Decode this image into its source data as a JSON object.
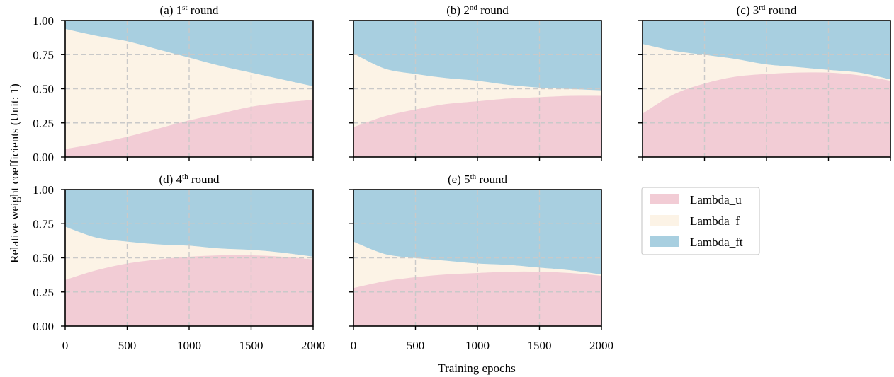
{
  "figure": {
    "ylabel": "Relative weight coefficients (Unit: 1)",
    "xlabel": "Training epochs"
  },
  "legend": {
    "items": [
      {
        "label": "Lambda_u",
        "color": "#f2ccd5"
      },
      {
        "label": "Lambda_f",
        "color": "#fcf3e6"
      },
      {
        "label": "Lambda_ft",
        "color": "#a8cfe0"
      }
    ],
    "placement": "right of bottom row"
  },
  "chart_data": [
    {
      "type": "area",
      "stacked": true,
      "title": {
        "prefix": "(a) 1",
        "sup": "st",
        "suffix": " round"
      },
      "x": [
        0,
        250,
        500,
        750,
        1000,
        1250,
        1500,
        1750,
        2000
      ],
      "xlim": [
        0,
        2000
      ],
      "ylim": [
        0,
        1
      ],
      "xticks": [
        0,
        500,
        1000,
        1500,
        2000
      ],
      "yticks": [
        0.0,
        0.25,
        0.5,
        0.75,
        1.0
      ],
      "grid": true,
      "series": [
        {
          "name": "Lambda_u",
          "values": [
            0.06,
            0.1,
            0.15,
            0.21,
            0.27,
            0.32,
            0.37,
            0.4,
            0.42
          ]
        },
        {
          "name": "Lambda_f",
          "values": [
            0.88,
            0.79,
            0.7,
            0.58,
            0.46,
            0.35,
            0.25,
            0.17,
            0.1
          ]
        },
        {
          "name": "Lambda_ft",
          "values": [
            0.06,
            0.11,
            0.15,
            0.21,
            0.27,
            0.33,
            0.38,
            0.43,
            0.48
          ]
        }
      ]
    },
    {
      "type": "area",
      "stacked": true,
      "title": {
        "prefix": "(b) 2",
        "sup": "nd",
        "suffix": " round"
      },
      "x": [
        0,
        250,
        500,
        750,
        1000,
        1250,
        1500,
        1750,
        2000
      ],
      "xlim": [
        0,
        2000
      ],
      "ylim": [
        0,
        1
      ],
      "xticks": [
        0,
        500,
        1000,
        1500,
        2000
      ],
      "yticks": [
        0.0,
        0.25,
        0.5,
        0.75,
        1.0
      ],
      "grid": true,
      "series": [
        {
          "name": "Lambda_u",
          "values": [
            0.22,
            0.3,
            0.35,
            0.39,
            0.41,
            0.43,
            0.44,
            0.45,
            0.45
          ]
        },
        {
          "name": "Lambda_f",
          "values": [
            0.54,
            0.35,
            0.26,
            0.19,
            0.15,
            0.1,
            0.07,
            0.05,
            0.04
          ]
        },
        {
          "name": "Lambda_ft",
          "values": [
            0.24,
            0.35,
            0.39,
            0.42,
            0.44,
            0.47,
            0.49,
            0.5,
            0.51
          ]
        }
      ]
    },
    {
      "type": "area",
      "stacked": true,
      "title": {
        "prefix": "(c) 3",
        "sup": "rd",
        "suffix": " round"
      },
      "x": [
        0,
        250,
        500,
        750,
        1000,
        1250,
        1500,
        1750,
        2000
      ],
      "xlim": [
        0,
        2000
      ],
      "ylim": [
        0,
        1
      ],
      "xticks": [
        0,
        500,
        1000,
        1500,
        2000
      ],
      "yticks": [
        0.0,
        0.25,
        0.5,
        0.75,
        1.0
      ],
      "grid": true,
      "series": [
        {
          "name": "Lambda_u",
          "values": [
            0.32,
            0.46,
            0.54,
            0.59,
            0.61,
            0.62,
            0.62,
            0.6,
            0.56
          ]
        },
        {
          "name": "Lambda_f",
          "values": [
            0.51,
            0.32,
            0.21,
            0.13,
            0.07,
            0.04,
            0.02,
            0.02,
            0.01
          ]
        },
        {
          "name": "Lambda_ft",
          "values": [
            0.17,
            0.22,
            0.25,
            0.28,
            0.32,
            0.34,
            0.36,
            0.38,
            0.43
          ]
        }
      ]
    },
    {
      "type": "area",
      "stacked": true,
      "title": {
        "prefix": "(d) 4",
        "sup": "th",
        "suffix": " round"
      },
      "x": [
        0,
        250,
        500,
        750,
        1000,
        1250,
        1500,
        1750,
        2000
      ],
      "xlim": [
        0,
        2000
      ],
      "ylim": [
        0,
        1
      ],
      "xticks": [
        0,
        500,
        1000,
        1500,
        2000
      ],
      "yticks": [
        0.0,
        0.25,
        0.5,
        0.75,
        1.0
      ],
      "grid": true,
      "series": [
        {
          "name": "Lambda_u",
          "values": [
            0.34,
            0.41,
            0.46,
            0.49,
            0.51,
            0.52,
            0.52,
            0.51,
            0.49
          ]
        },
        {
          "name": "Lambda_f",
          "values": [
            0.39,
            0.24,
            0.16,
            0.11,
            0.08,
            0.05,
            0.04,
            0.03,
            0.02
          ]
        },
        {
          "name": "Lambda_ft",
          "values": [
            0.27,
            0.35,
            0.38,
            0.4,
            0.41,
            0.43,
            0.44,
            0.46,
            0.49
          ]
        }
      ]
    },
    {
      "type": "area",
      "stacked": true,
      "title": {
        "prefix": "(e) 5",
        "sup": "th",
        "suffix": " round"
      },
      "x": [
        0,
        250,
        500,
        750,
        1000,
        1250,
        1500,
        1750,
        2000
      ],
      "xlim": [
        0,
        2000
      ],
      "ylim": [
        0,
        1
      ],
      "xticks": [
        0,
        500,
        1000,
        1500,
        2000
      ],
      "yticks": [
        0.0,
        0.25,
        0.5,
        0.75,
        1.0
      ],
      "grid": true,
      "series": [
        {
          "name": "Lambda_u",
          "values": [
            0.28,
            0.33,
            0.36,
            0.38,
            0.39,
            0.4,
            0.4,
            0.39,
            0.37
          ]
        },
        {
          "name": "Lambda_f",
          "values": [
            0.34,
            0.2,
            0.14,
            0.1,
            0.07,
            0.05,
            0.03,
            0.02,
            0.01
          ]
        },
        {
          "name": "Lambda_ft",
          "values": [
            0.38,
            0.47,
            0.5,
            0.52,
            0.54,
            0.55,
            0.57,
            0.59,
            0.62
          ]
        }
      ]
    }
  ]
}
